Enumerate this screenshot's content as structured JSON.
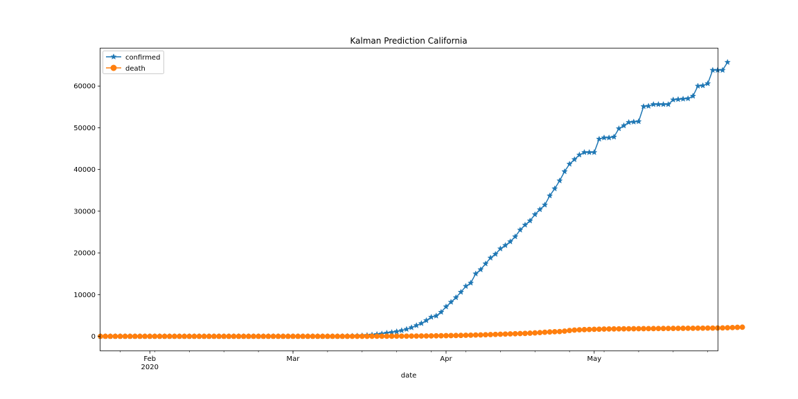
{
  "chart_data": {
    "type": "line",
    "title": "Kalman Prediction California",
    "xlabel": "date",
    "ylabel": "",
    "x_start": "2020-01-22",
    "x_end": "2020-05-26",
    "xlim": [
      "2020-01-22",
      "2020-05-26"
    ],
    "ylim": [
      -3400,
      69000
    ],
    "y_ticks": [
      0,
      10000,
      20000,
      30000,
      40000,
      50000,
      60000
    ],
    "y_tick_labels": [
      "0",
      "10000",
      "20000",
      "30000",
      "40000",
      "50000",
      "60000"
    ],
    "x_ticks": [
      {
        "date": "2020-02-01",
        "label": "Feb",
        "sublabel": "2020"
      },
      {
        "date": "2020-03-01",
        "label": "Mar",
        "sublabel": ""
      },
      {
        "date": "2020-04-01",
        "label": "Apr",
        "sublabel": ""
      },
      {
        "date": "2020-05-01",
        "label": "May",
        "sublabel": ""
      }
    ],
    "grid": false,
    "legend_position": "top-left",
    "series": [
      {
        "name": "confirmed",
        "color": "#1f77b4",
        "marker": "star",
        "values": [
          0,
          0,
          0,
          0,
          0,
          0,
          0,
          0,
          0,
          0,
          0,
          0,
          0,
          0,
          0,
          0,
          0,
          0,
          0,
          0,
          0,
          0,
          0,
          0,
          0,
          0,
          0,
          0,
          0,
          0,
          0,
          0,
          0,
          0,
          0,
          0,
          0,
          0,
          0,
          0,
          0,
          0,
          0,
          0,
          0,
          0,
          0,
          0,
          5,
          20,
          40,
          80,
          120,
          180,
          260,
          360,
          480,
          620,
          800,
          950,
          1150,
          1400,
          1700,
          2100,
          2600,
          3100,
          3800,
          4600,
          4900,
          5800,
          7100,
          8200,
          9300,
          10600,
          12000,
          12800,
          15000,
          16000,
          17400,
          18800,
          19700,
          21000,
          21800,
          22700,
          23900,
          25500,
          26700,
          27700,
          29200,
          30400,
          31500,
          33700,
          35400,
          37300,
          39500,
          41300,
          42400,
          43500,
          44100,
          44100,
          44100,
          47300,
          47600,
          47600,
          47800,
          49800,
          50500,
          51300,
          51400,
          51500,
          55100,
          55200,
          55600,
          55600,
          55600,
          55600,
          56700,
          56800,
          56900,
          57000,
          57600,
          60000,
          60100,
          60600,
          63800,
          63800,
          63800,
          65700
        ]
      },
      {
        "name": "death",
        "color": "#ff7f0e",
        "marker": "circle",
        "values": [
          0,
          0,
          0,
          0,
          0,
          0,
          0,
          0,
          0,
          0,
          0,
          0,
          0,
          0,
          0,
          0,
          0,
          0,
          0,
          0,
          0,
          0,
          0,
          0,
          0,
          0,
          0,
          0,
          0,
          0,
          0,
          0,
          0,
          0,
          0,
          0,
          0,
          0,
          0,
          0,
          0,
          0,
          0,
          0,
          0,
          0,
          0,
          0,
          2,
          4,
          6,
          8,
          10,
          12,
          15,
          18,
          22,
          26,
          30,
          35,
          40,
          45,
          50,
          60,
          70,
          80,
          90,
          100,
          120,
          140,
          160,
          180,
          200,
          220,
          250,
          280,
          310,
          340,
          380,
          420,
          460,
          500,
          540,
          580,
          620,
          660,
          700,
          760,
          820,
          900,
          980,
          1050,
          1100,
          1150,
          1250,
          1400,
          1500,
          1560,
          1610,
          1650,
          1680,
          1710,
          1740,
          1760,
          1780,
          1790,
          1800,
          1810,
          1820,
          1830,
          1840,
          1850,
          1860,
          1870,
          1880,
          1890,
          1900,
          1910,
          1920,
          1930,
          1940,
          1950,
          1960,
          1970,
          1980,
          2000,
          2020,
          2050,
          2100,
          2150,
          2190
        ]
      }
    ]
  }
}
